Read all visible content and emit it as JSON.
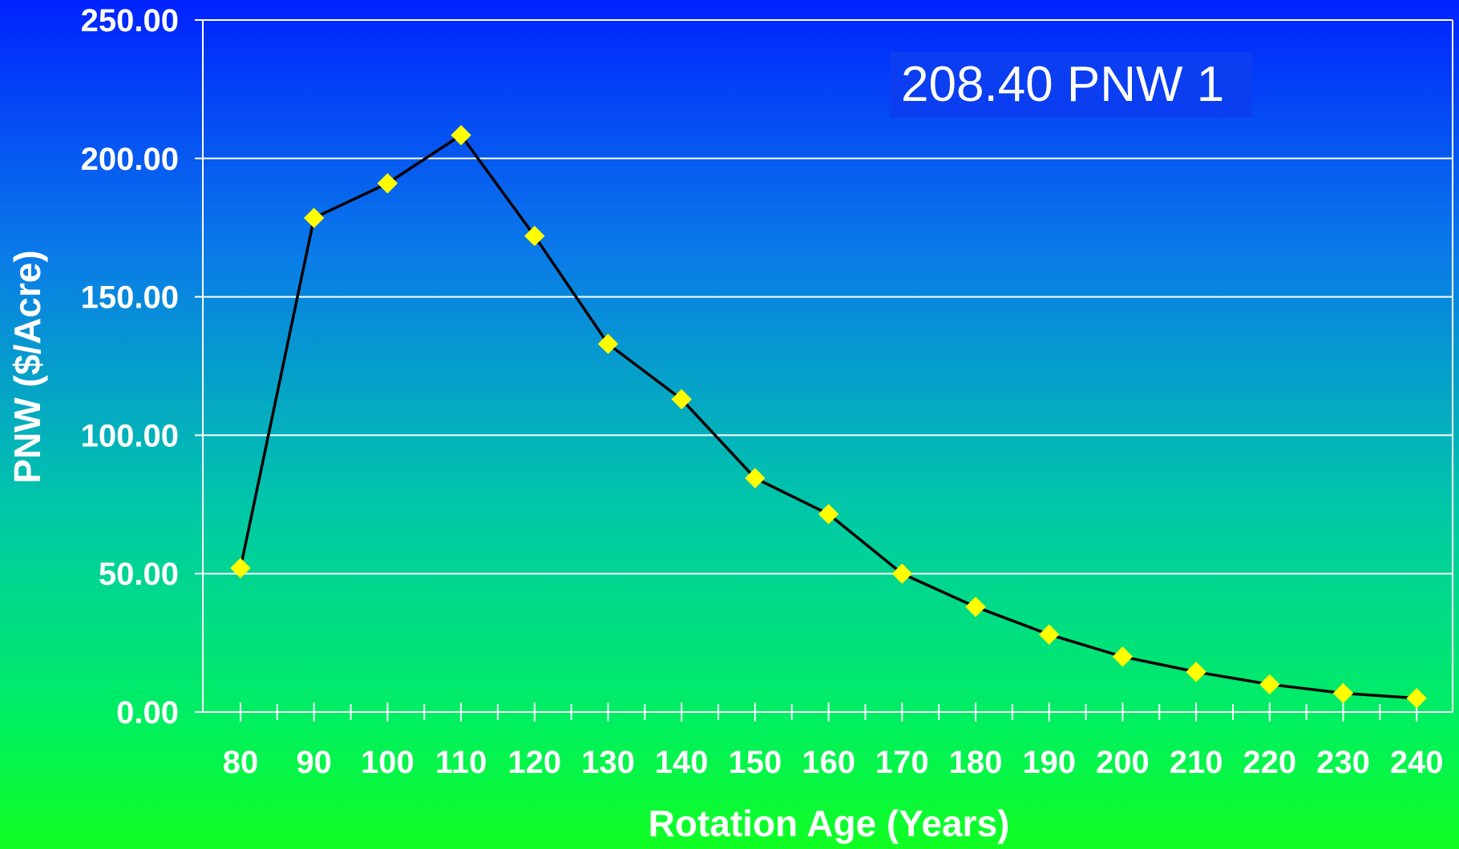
{
  "chart_data": {
    "type": "line",
    "title": "",
    "xlabel": "Rotation Age (Years)",
    "ylabel": "PNW ($/Acre)",
    "categories": [
      "80",
      "90",
      "100",
      "110",
      "120",
      "130",
      "140",
      "150",
      "160",
      "170",
      "180",
      "190",
      "200",
      "210",
      "220",
      "230",
      "240"
    ],
    "series": [
      {
        "values": [
          52.0,
          178.5,
          191.0,
          208.4,
          172.0,
          133.0,
          113.0,
          84.5,
          71.5,
          50.0,
          38.0,
          28.0,
          20.0,
          14.5,
          10.0,
          6.8,
          5.0
        ],
        "line_color": "#000000",
        "marker": "diamond",
        "marker_color": "#ffff00"
      }
    ],
    "y_ticks": [
      "0.00",
      "50.00",
      "100.00",
      "150.00",
      "200.00",
      "250.00"
    ],
    "ylim": [
      0,
      250
    ],
    "grid": true,
    "annotation": "208.40 PNW 1",
    "colors": {
      "background_top": "#0022ff",
      "background_bottom": "#11ff22",
      "gridline": "#ffffff",
      "text": "#ffffff",
      "annotation_box": "#0a3ef0"
    }
  }
}
